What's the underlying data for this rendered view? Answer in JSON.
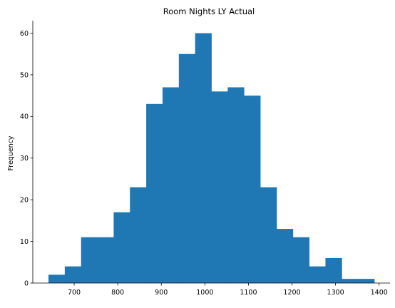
{
  "chart_data": {
    "type": "bar",
    "subtype": "histogram",
    "title": "Room Nights LY Actual",
    "xlabel": "",
    "ylabel": "Frequency",
    "bar_color": "#1f77b4",
    "bins": [
      {
        "x0": 641,
        "x1": 678.4,
        "count": 2
      },
      {
        "x0": 678.4,
        "x1": 715.8,
        "count": 4
      },
      {
        "x0": 715.8,
        "x1": 753.2,
        "count": 11
      },
      {
        "x0": 753.2,
        "x1": 790.6,
        "count": 11
      },
      {
        "x0": 790.6,
        "x1": 828.0,
        "count": 17
      },
      {
        "x0": 828.0,
        "x1": 865.4,
        "count": 23
      },
      {
        "x0": 865.4,
        "x1": 902.8,
        "count": 43
      },
      {
        "x0": 902.8,
        "x1": 940.2,
        "count": 47
      },
      {
        "x0": 940.2,
        "x1": 977.6,
        "count": 55
      },
      {
        "x0": 977.6,
        "x1": 1015.0,
        "count": 60
      },
      {
        "x0": 1015.0,
        "x1": 1052.4,
        "count": 46
      },
      {
        "x0": 1052.4,
        "x1": 1089.8,
        "count": 47
      },
      {
        "x0": 1089.8,
        "x1": 1127.2,
        "count": 45
      },
      {
        "x0": 1127.2,
        "x1": 1164.6,
        "count": 23
      },
      {
        "x0": 1164.6,
        "x1": 1202.0,
        "count": 13
      },
      {
        "x0": 1202.0,
        "x1": 1239.4,
        "count": 11
      },
      {
        "x0": 1239.4,
        "x1": 1276.8,
        "count": 4
      },
      {
        "x0": 1276.8,
        "x1": 1314.2,
        "count": 6
      },
      {
        "x0": 1314.2,
        "x1": 1351.6,
        "count": 1
      },
      {
        "x0": 1351.6,
        "x1": 1389.0,
        "count": 1
      }
    ],
    "xlim": [
      605,
      1425
    ],
    "ylim": [
      0,
      63
    ],
    "x_ticks": [
      "700",
      "800",
      "900",
      "1000",
      "1100",
      "1200",
      "1300",
      "1400"
    ],
    "y_ticks": [
      "0",
      "10",
      "20",
      "30",
      "40",
      "50",
      "60"
    ],
    "grid": false,
    "top_right_spines": false
  }
}
